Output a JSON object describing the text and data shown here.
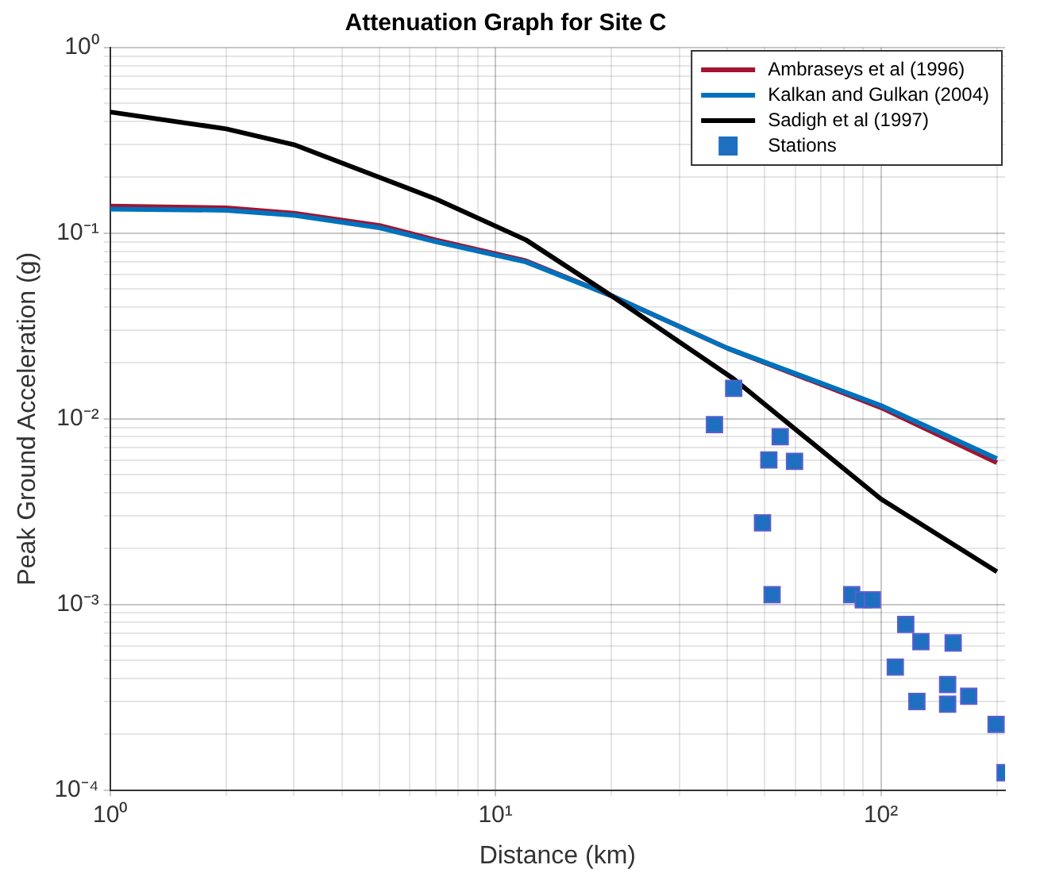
{
  "chart_data": {
    "type": "line",
    "title": "Attenuation Graph for Site C",
    "xlabel": "Distance (km)",
    "ylabel": "Peak Ground Acceleration (g)",
    "log": "xy",
    "grid": true,
    "legend": "top right",
    "xlim": [
      1,
      210
    ],
    "ylim": [
      0.0001,
      1
    ],
    "xticks": [
      {
        "value": 1,
        "label": "10⁰"
      },
      {
        "value": 2,
        "label": null
      },
      {
        "value": 3,
        "label": null
      },
      {
        "value": 4,
        "label": null
      },
      {
        "value": 5,
        "label": null
      },
      {
        "value": 6,
        "label": null
      },
      {
        "value": 7,
        "label": null
      },
      {
        "value": 8,
        "label": null
      },
      {
        "value": 9,
        "label": null
      },
      {
        "value": 10,
        "label": "10¹"
      },
      {
        "value": 20,
        "label": null
      },
      {
        "value": 30,
        "label": null
      },
      {
        "value": 40,
        "label": null
      },
      {
        "value": 50,
        "label": null
      },
      {
        "value": 60,
        "label": null
      },
      {
        "value": 70,
        "label": null
      },
      {
        "value": 80,
        "label": null
      },
      {
        "value": 90,
        "label": null
      },
      {
        "value": 100,
        "label": "10²"
      },
      {
        "value": 200,
        "label": null
      }
    ],
    "yticks": [
      {
        "value": 0.0001,
        "label": "10⁻⁴"
      },
      {
        "value": 0.0002,
        "label": null
      },
      {
        "value": 0.0003,
        "label": null
      },
      {
        "value": 0.0004,
        "label": null
      },
      {
        "value": 0.0005,
        "label": null
      },
      {
        "value": 0.0006,
        "label": null
      },
      {
        "value": 0.0007,
        "label": null
      },
      {
        "value": 0.0008,
        "label": null
      },
      {
        "value": 0.0009,
        "label": null
      },
      {
        "value": 0.001,
        "label": "10⁻³"
      },
      {
        "value": 0.002,
        "label": null
      },
      {
        "value": 0.003,
        "label": null
      },
      {
        "value": 0.004,
        "label": null
      },
      {
        "value": 0.005,
        "label": null
      },
      {
        "value": 0.006,
        "label": null
      },
      {
        "value": 0.007,
        "label": null
      },
      {
        "value": 0.008,
        "label": null
      },
      {
        "value": 0.009,
        "label": null
      },
      {
        "value": 0.01,
        "label": "10⁻²"
      },
      {
        "value": 0.02,
        "label": null
      },
      {
        "value": 0.03,
        "label": null
      },
      {
        "value": 0.04,
        "label": null
      },
      {
        "value": 0.05,
        "label": null
      },
      {
        "value": 0.06,
        "label": null
      },
      {
        "value": 0.07,
        "label": null
      },
      {
        "value": 0.08,
        "label": null
      },
      {
        "value": 0.09,
        "label": null
      },
      {
        "value": 0.1,
        "label": "10⁻¹"
      },
      {
        "value": 0.2,
        "label": null
      },
      {
        "value": 0.3,
        "label": null
      },
      {
        "value": 0.4,
        "label": null
      },
      {
        "value": 0.5,
        "label": null
      },
      {
        "value": 0.6,
        "label": null
      },
      {
        "value": 0.7,
        "label": null
      },
      {
        "value": 0.8,
        "label": null
      },
      {
        "value": 0.9,
        "label": null
      },
      {
        "value": 1,
        "label": "10⁰"
      }
    ],
    "series": [
      {
        "name": "Ambraseys et al (1996)",
        "type": "line",
        "color": "#a2142f",
        "x": [
          1,
          2,
          3,
          5,
          7,
          12,
          20,
          40,
          100,
          200
        ],
        "values": [
          0.14,
          0.137,
          0.128,
          0.11,
          0.092,
          0.071,
          0.046,
          0.024,
          0.0115,
          0.0058
        ]
      },
      {
        "name": "Kalkan and Gulkan (2004)",
        "type": "line",
        "color": "#0072bd",
        "x": [
          1,
          2,
          3,
          5,
          7,
          12,
          20,
          40,
          100,
          200
        ],
        "values": [
          0.135,
          0.133,
          0.125,
          0.107,
          0.09,
          0.07,
          0.046,
          0.024,
          0.0118,
          0.0061
        ]
      },
      {
        "name": "Sadigh et al (1997)",
        "type": "line",
        "color": "#000000",
        "x": [
          1,
          2,
          3,
          5,
          7,
          12,
          20,
          41.5,
          100,
          200
        ],
        "values": [
          0.45,
          0.365,
          0.3,
          0.2,
          0.153,
          0.092,
          0.046,
          0.0164,
          0.0037,
          0.0015
        ]
      },
      {
        "name": "Stations",
        "type": "scatter",
        "marker": "square",
        "color": "#1f6fc0",
        "x": [
          37,
          41.5,
          54.8,
          51.2,
          59.7,
          49.3,
          52.2,
          84,
          90,
          95,
          116,
          127,
          154,
          109,
          149,
          169,
          124,
          149,
          199,
          210
        ],
        "values": [
          0.0093,
          0.0146,
          0.008,
          0.006,
          0.0059,
          0.00275,
          0.00113,
          0.00113,
          0.00106,
          0.00106,
          0.00078,
          0.00063,
          0.00062,
          0.00046,
          0.00037,
          0.00032,
          0.0003,
          0.00029,
          0.000226,
          0.000124
        ]
      }
    ]
  }
}
